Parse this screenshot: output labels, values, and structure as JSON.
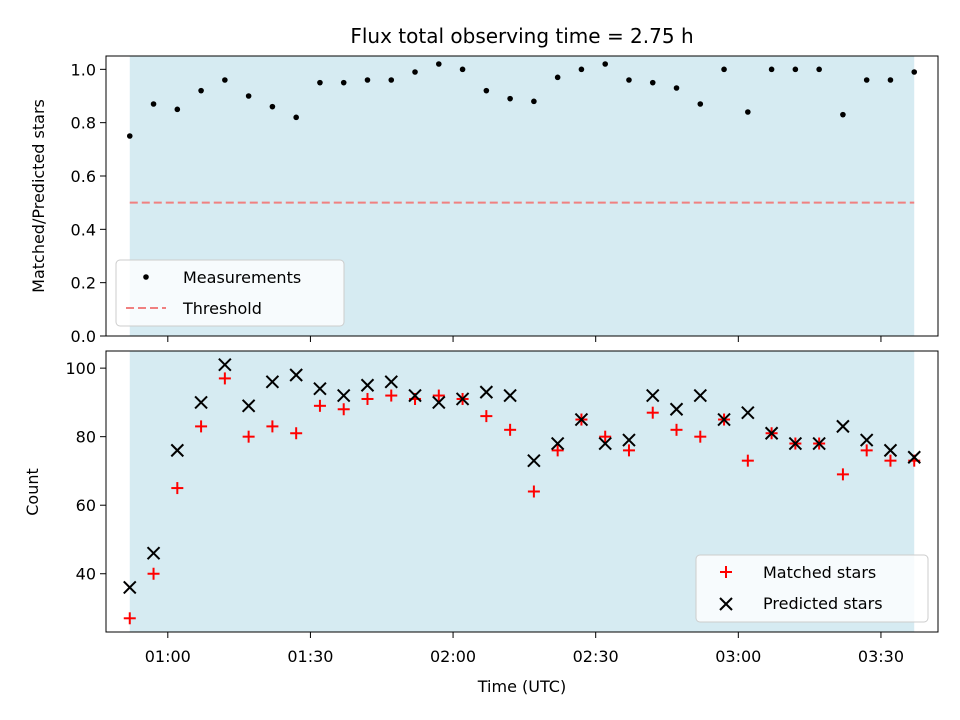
{
  "title": "Flux total observing time = 2.75 h",
  "colors": {
    "span": "#add8e6",
    "measurement": "#000000",
    "threshold": "#f08080",
    "matched": "#ff0000",
    "predicted": "#000000"
  },
  "chart_data": [
    {
      "type": "scatter",
      "title": "Flux total observing time = 2.75 h",
      "xlabel": "",
      "ylabel": "Matched/Predicted stars",
      "x_range": [
        "00:47",
        "03:42"
      ],
      "ylim": [
        0,
        1.05
      ],
      "yticks": [
        "0.0",
        "0.2",
        "0.4",
        "0.6",
        "0.8",
        "1.0"
      ],
      "shaded_span": [
        "00:52",
        "03:37"
      ],
      "threshold": 0.5,
      "legend": {
        "placement": "lower-left",
        "entries": [
          "Measurements",
          "Threshold"
        ]
      },
      "series": [
        {
          "name": "Measurements",
          "marker": "dot",
          "x": [
            "00:52",
            "00:57",
            "01:02",
            "01:07",
            "01:12",
            "01:17",
            "01:22",
            "01:27",
            "01:32",
            "01:37",
            "01:42",
            "01:47",
            "01:52",
            "01:57",
            "02:02",
            "02:07",
            "02:12",
            "02:17",
            "02:22",
            "02:27",
            "02:32",
            "02:37",
            "02:42",
            "02:47",
            "02:52",
            "02:57",
            "03:02",
            "03:07",
            "03:12",
            "03:17",
            "03:22",
            "03:27",
            "03:32",
            "03:37"
          ],
          "y": [
            0.75,
            0.87,
            0.85,
            0.92,
            0.96,
            0.9,
            0.86,
            0.82,
            0.95,
            0.95,
            0.96,
            0.96,
            0.99,
            1.02,
            1.0,
            0.92,
            0.89,
            0.88,
            0.97,
            1.0,
            1.02,
            0.96,
            0.95,
            0.93,
            0.87,
            1.0,
            0.84,
            1.0,
            1.0,
            1.0,
            0.83,
            0.96,
            0.96,
            0.99
          ]
        },
        {
          "name": "Threshold",
          "marker": "dashed-line",
          "y": 0.5
        }
      ]
    },
    {
      "type": "scatter",
      "title": "",
      "xlabel": "Time (UTC)",
      "ylabel": "Count",
      "x_range": [
        "00:47",
        "03:42"
      ],
      "ylim": [
        23,
        105
      ],
      "yticks": [
        "40",
        "60",
        "80",
        "100"
      ],
      "xticks": [
        "01:00",
        "01:30",
        "02:00",
        "02:30",
        "03:00",
        "03:30"
      ],
      "shaded_span": [
        "00:52",
        "03:37"
      ],
      "legend": {
        "placement": "lower-right",
        "entries": [
          "Matched stars",
          "Predicted stars"
        ]
      },
      "series": [
        {
          "name": "Matched stars",
          "marker": "plus",
          "x": [
            "00:52",
            "00:57",
            "01:02",
            "01:07",
            "01:12",
            "01:17",
            "01:22",
            "01:27",
            "01:32",
            "01:37",
            "01:42",
            "01:47",
            "01:52",
            "01:57",
            "02:02",
            "02:07",
            "02:12",
            "02:17",
            "02:22",
            "02:27",
            "02:32",
            "02:37",
            "02:42",
            "02:47",
            "02:52",
            "02:57",
            "03:02",
            "03:07",
            "03:12",
            "03:17",
            "03:22",
            "03:27",
            "03:32",
            "03:37"
          ],
          "y": [
            27,
            40,
            65,
            83,
            97,
            80,
            83,
            81,
            89,
            88,
            91,
            92,
            91,
            92,
            91,
            86,
            82,
            64,
            76,
            85,
            80,
            76,
            87,
            82,
            80,
            85,
            73,
            81,
            78,
            78,
            69,
            76,
            73,
            73
          ]
        },
        {
          "name": "Predicted stars",
          "marker": "x",
          "x": [
            "00:52",
            "00:57",
            "01:02",
            "01:07",
            "01:12",
            "01:17",
            "01:22",
            "01:27",
            "01:32",
            "01:37",
            "01:42",
            "01:47",
            "01:52",
            "01:57",
            "02:02",
            "02:07",
            "02:12",
            "02:17",
            "02:22",
            "02:27",
            "02:32",
            "02:37",
            "02:42",
            "02:47",
            "02:52",
            "02:57",
            "03:02",
            "03:07",
            "03:12",
            "03:17",
            "03:22",
            "03:27",
            "03:32",
            "03:37"
          ],
          "y": [
            36,
            46,
            76,
            90,
            101,
            89,
            96,
            98,
            94,
            92,
            95,
            96,
            92,
            90,
            91,
            93,
            92,
            73,
            78,
            85,
            78,
            79,
            92,
            88,
            92,
            85,
            87,
            81,
            78,
            78,
            83,
            79,
            76,
            74
          ]
        }
      ]
    }
  ]
}
